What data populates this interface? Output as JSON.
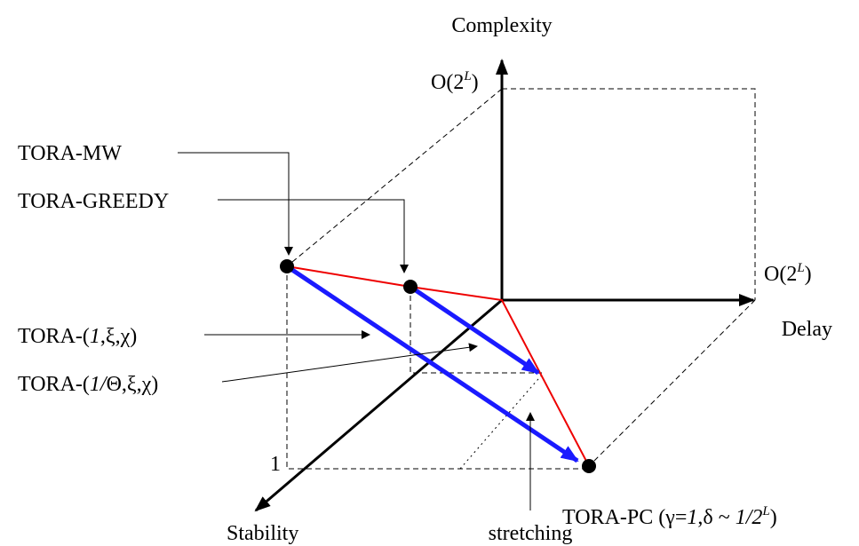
{
  "axes": {
    "complexity": "Complexity",
    "delay": "Delay",
    "stability": "Stability"
  },
  "complexity_max": {
    "base": "O(2",
    "sup": "L",
    "end": ")"
  },
  "delay_max": {
    "base": "O(2",
    "sup": "L",
    "end": ")"
  },
  "stability_max": "1",
  "labels": {
    "tora_mw": "TORA-MW",
    "tora_greedy": "TORA-GREEDY",
    "tora_1": {
      "pre": "TORA-(",
      "it": "1",
      "post": ",ξ,χ)"
    },
    "tora_theta": {
      "pre": "TORA-(",
      "it": "1/",
      "mid": "Θ,ξ,χ)"
    },
    "tora_pc": {
      "pre": "TORA-PC (γ=",
      "it1": "1",
      "mid": ",δ ~ ",
      "it2": "1/2",
      "sup": "L",
      "end": ")"
    },
    "stretching": "stretching"
  }
}
